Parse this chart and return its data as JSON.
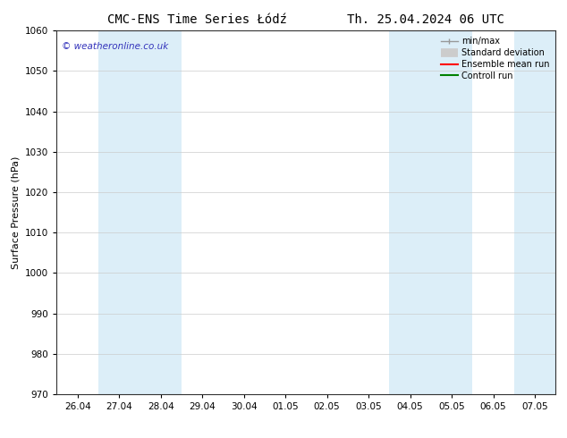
{
  "title": "CMC-ENS Time Series Łódź        Th. 25.04.2024 06 UTC",
  "ylabel": "Surface Pressure (hPa)",
  "ylim": [
    970,
    1060
  ],
  "yticks": [
    970,
    980,
    990,
    1000,
    1010,
    1020,
    1030,
    1040,
    1050,
    1060
  ],
  "xtick_labels": [
    "26.04",
    "27.04",
    "28.04",
    "29.04",
    "30.04",
    "01.05",
    "02.05",
    "03.05",
    "04.05",
    "05.05",
    "06.05",
    "07.05"
  ],
  "xtick_positions": [
    0,
    1,
    2,
    3,
    4,
    5,
    6,
    7,
    8,
    9,
    10,
    11
  ],
  "xlim": [
    -0.5,
    11.5
  ],
  "shaded_bands": [
    {
      "x_start": 0.5,
      "x_end": 2.5,
      "color": "#dceef8"
    },
    {
      "x_start": 7.5,
      "x_end": 9.5,
      "color": "#dceef8"
    }
  ],
  "right_shade": {
    "x_start": 10.5,
    "x_end": 11.5,
    "color": "#dceef8"
  },
  "watermark": "© weatheronline.co.uk",
  "watermark_color": "#3333bb",
  "legend_items": [
    {
      "label": "min/max",
      "color": "#999999",
      "lw": 1.0
    },
    {
      "label": "Standard deviation",
      "color": "#cccccc",
      "lw": 6
    },
    {
      "label": "Ensemble mean run",
      "color": "red",
      "lw": 1.5
    },
    {
      "label": "Controll run",
      "color": "green",
      "lw": 1.5
    }
  ],
  "bg_color": "#ffffff",
  "grid_color": "#cccccc",
  "title_fontsize": 10,
  "axis_fontsize": 8,
  "tick_fontsize": 7.5
}
